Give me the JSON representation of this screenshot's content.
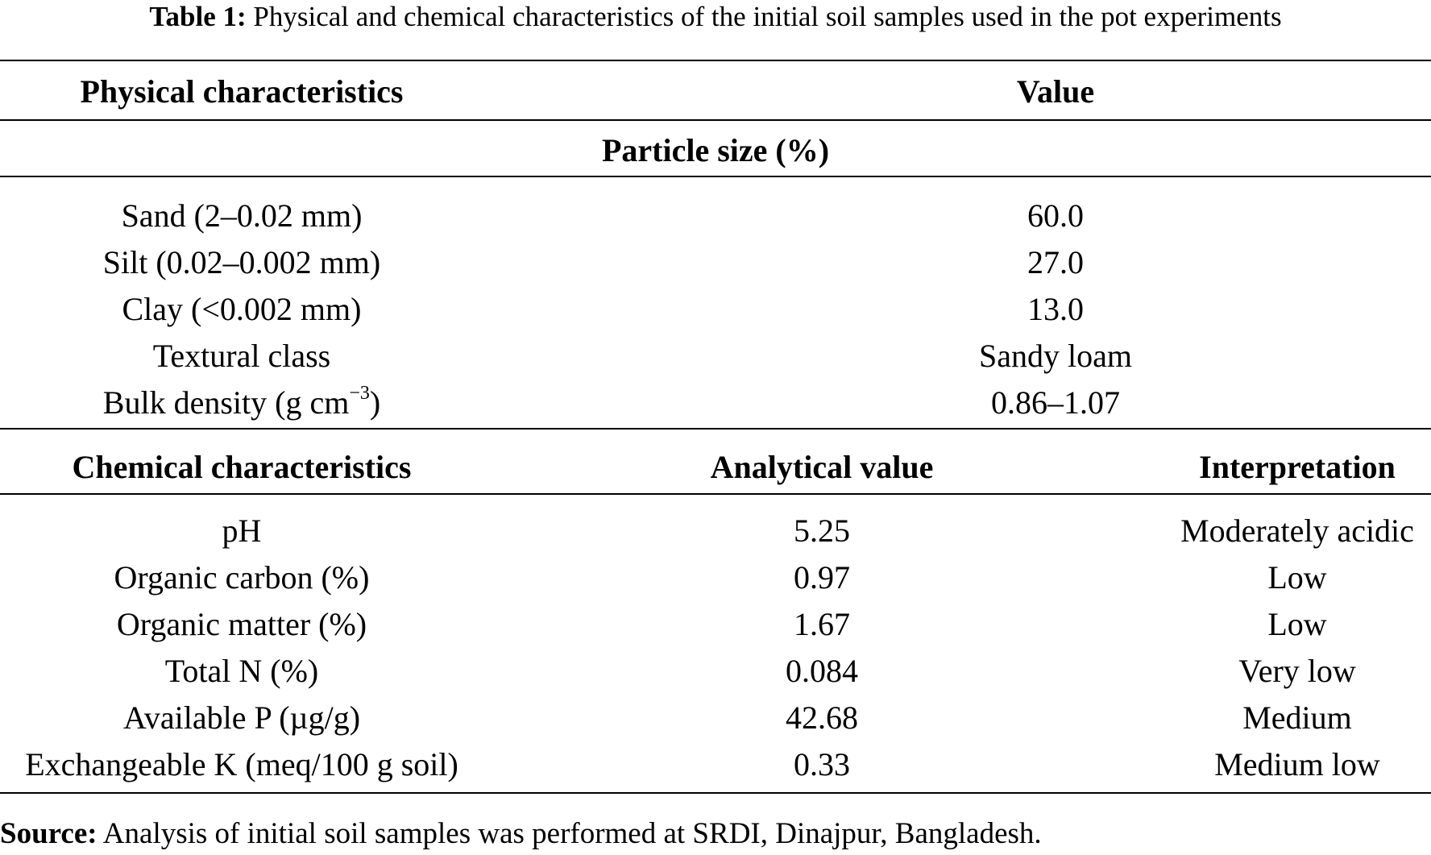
{
  "caption": {
    "label": "Table 1:",
    "text": "Physical and chemical characteristics of the initial soil samples used in the pot experiments"
  },
  "physical": {
    "header": {
      "characteristic": "Physical characteristics",
      "value": "Value"
    },
    "section": "Particle size (%)",
    "rows": [
      {
        "name": "Sand (2–0.02 mm)",
        "value": "60.0"
      },
      {
        "name": "Silt (0.02–0.002 mm)",
        "value": "27.0"
      },
      {
        "name": "Clay (<0.002 mm)",
        "value": "13.0"
      },
      {
        "name": "Textural class",
        "value": "Sandy loam"
      },
      {
        "name": "Bulk density (g cm",
        "name_sup": "−3",
        "name_end": ")",
        "value": "0.86–1.07"
      }
    ]
  },
  "chemical": {
    "header": {
      "characteristic": "Chemical characteristics",
      "value": "Analytical value",
      "interpretation": "Interpretation"
    },
    "rows": [
      {
        "name": "pH",
        "value": "5.25",
        "interpretation": "Moderately acidic"
      },
      {
        "name": "Organic carbon (%)",
        "value": "0.97",
        "interpretation": "Low"
      },
      {
        "name": "Organic matter (%)",
        "value": "1.67",
        "interpretation": "Low"
      },
      {
        "name": "Total N (%)",
        "value": "0.084",
        "interpretation": "Very low"
      },
      {
        "name": "Available P (µg/g)",
        "value": "42.68",
        "interpretation": "Medium"
      },
      {
        "name": "Exchangeable K (meq/100 g soil)",
        "value": "0.33",
        "interpretation": "Medium low"
      }
    ]
  },
  "source": {
    "label": "Source:",
    "text": "Analysis of initial soil samples was performed at SRDI, Dinajpur, Bangladesh."
  }
}
